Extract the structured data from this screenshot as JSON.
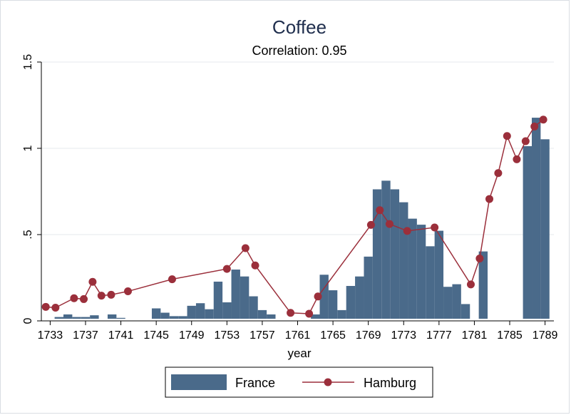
{
  "chart_data": {
    "type": "bar",
    "title": "Coffee",
    "subtitle": "Correlation: 0.95",
    "xlabel": "year",
    "ylabel": "",
    "xlim": [
      1732,
      1790
    ],
    "ylim": [
      0,
      1.5
    ],
    "y_ticks": [
      0,
      0.5,
      1,
      1.5
    ],
    "y_tick_labels": [
      "0",
      ".5",
      "1",
      "1.5"
    ],
    "x_ticks": [
      1733,
      1737,
      1741,
      1745,
      1749,
      1753,
      1757,
      1761,
      1765,
      1769,
      1773,
      1777,
      1781,
      1785,
      1789
    ],
    "grid": true,
    "legend_position": "bottom",
    "series": [
      {
        "name": "France",
        "type": "bar",
        "color": "#4a6a8a",
        "points": [
          [
            1734,
            0.01
          ],
          [
            1735,
            0.025
          ],
          [
            1736,
            0.01
          ],
          [
            1737,
            0.01
          ],
          [
            1738,
            0.02
          ],
          [
            1740,
            0.025
          ],
          [
            1741,
            0.005
          ],
          [
            1745,
            0.06
          ],
          [
            1746,
            0.035
          ],
          [
            1747,
            0.015
          ],
          [
            1748,
            0.015
          ],
          [
            1749,
            0.075
          ],
          [
            1750,
            0.09
          ],
          [
            1751,
            0.055
          ],
          [
            1752,
            0.215
          ],
          [
            1753,
            0.095
          ],
          [
            1754,
            0.285
          ],
          [
            1755,
            0.245
          ],
          [
            1756,
            0.13
          ],
          [
            1757,
            0.05
          ],
          [
            1758,
            0.025
          ],
          [
            1763,
            0.025
          ],
          [
            1764,
            0.255
          ],
          [
            1765,
            0.165
          ],
          [
            1766,
            0.05
          ],
          [
            1767,
            0.19
          ],
          [
            1768,
            0.245
          ],
          [
            1769,
            0.36
          ],
          [
            1770,
            0.75
          ],
          [
            1771,
            0.8
          ],
          [
            1772,
            0.75
          ],
          [
            1773,
            0.675
          ],
          [
            1774,
            0.58
          ],
          [
            1775,
            0.545
          ],
          [
            1776,
            0.42
          ],
          [
            1777,
            0.51
          ],
          [
            1778,
            0.185
          ],
          [
            1779,
            0.2
          ],
          [
            1780,
            0.085
          ],
          [
            1782,
            0.39
          ],
          [
            1787,
            1.0
          ],
          [
            1788,
            1.165
          ],
          [
            1789,
            1.04
          ]
        ]
      },
      {
        "name": "Hamburg",
        "type": "line",
        "color": "#9b2f3b",
        "points": [
          [
            1732.5,
            0.04
          ],
          [
            1733.6,
            0.035
          ],
          [
            1735.7,
            0.09
          ],
          [
            1736.8,
            0.085
          ],
          [
            1737.8,
            0.185
          ],
          [
            1738.8,
            0.105
          ],
          [
            1739.9,
            0.11
          ],
          [
            1741.8,
            0.13
          ],
          [
            1746.8,
            0.2
          ],
          [
            1753.0,
            0.26
          ],
          [
            1755.1,
            0.38
          ],
          [
            1756.2,
            0.28
          ],
          [
            1760.2,
            0.005
          ],
          [
            1762.3,
            0.0
          ],
          [
            1763.3,
            0.1
          ],
          [
            1769.3,
            0.515
          ],
          [
            1770.3,
            0.6
          ],
          [
            1771.4,
            0.52
          ],
          [
            1773.4,
            0.48
          ],
          [
            1776.5,
            0.5
          ],
          [
            1780.6,
            0.17
          ],
          [
            1781.6,
            0.32
          ],
          [
            1782.7,
            0.665
          ],
          [
            1783.7,
            0.815
          ],
          [
            1784.7,
            1.03
          ],
          [
            1785.8,
            0.895
          ],
          [
            1786.8,
            1.0
          ],
          [
            1787.8,
            1.085
          ],
          [
            1788.8,
            1.125
          ]
        ]
      }
    ]
  }
}
